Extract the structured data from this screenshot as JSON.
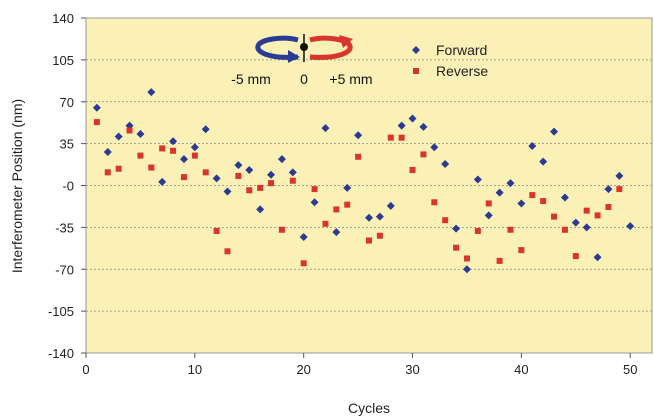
{
  "chart_data": {
    "type": "scatter",
    "xlabel": "Cycles",
    "ylabel": "Interferometer Position (nm)",
    "xlim": [
      0,
      52
    ],
    "ylim": [
      -140,
      140
    ],
    "x_ticks": [
      0,
      10,
      20,
      30,
      40,
      50
    ],
    "y_ticks": [
      140,
      105,
      70,
      35,
      0,
      -35,
      -70,
      -105,
      -140
    ],
    "y_tick_labels": [
      "140",
      "105",
      "70",
      "35",
      "-0",
      "-35",
      "-70",
      "-105",
      "-140"
    ],
    "grid": "horizontal dashed",
    "plot_background": "#fbf1b6",
    "legend_position": "top-right",
    "inset_labels": {
      "minus": "-5 mm",
      "zero": "0",
      "plus": "+5 mm"
    },
    "series": [
      {
        "name": "Forward",
        "marker": "diamond",
        "color": "#2b3a93",
        "points": [
          [
            1,
            65
          ],
          [
            2,
            28
          ],
          [
            3,
            41
          ],
          [
            4,
            50
          ],
          [
            5,
            43
          ],
          [
            6,
            78
          ],
          [
            7,
            3
          ],
          [
            8,
            37
          ],
          [
            9,
            22
          ],
          [
            10,
            32
          ],
          [
            11,
            47
          ],
          [
            12,
            6
          ],
          [
            13,
            -5
          ],
          [
            14,
            17
          ],
          [
            15,
            13
          ],
          [
            16,
            -20
          ],
          [
            17,
            9
          ],
          [
            18,
            22
          ],
          [
            19,
            11
          ],
          [
            20,
            -43
          ],
          [
            21,
            -14
          ],
          [
            22,
            48
          ],
          [
            23,
            -39
          ],
          [
            24,
            -2
          ],
          [
            25,
            42
          ],
          [
            26,
            -27
          ],
          [
            27,
            -26
          ],
          [
            28,
            -17
          ],
          [
            29,
            50
          ],
          [
            30,
            56
          ],
          [
            31,
            49
          ],
          [
            32,
            32
          ],
          [
            33,
            18
          ],
          [
            34,
            -36
          ],
          [
            35,
            -70
          ],
          [
            36,
            5
          ],
          [
            37,
            -25
          ],
          [
            38,
            -6
          ],
          [
            39,
            2
          ],
          [
            40,
            -15
          ],
          [
            41,
            33
          ],
          [
            42,
            20
          ],
          [
            43,
            45
          ],
          [
            44,
            -10
          ],
          [
            45,
            -31
          ],
          [
            46,
            -35
          ],
          [
            47,
            -60
          ],
          [
            48,
            -3
          ],
          [
            49,
            8
          ],
          [
            50,
            -34
          ]
        ]
      },
      {
        "name": "Reverse",
        "marker": "square",
        "color": "#d9352a",
        "points": [
          [
            1,
            53
          ],
          [
            2,
            11
          ],
          [
            3,
            14
          ],
          [
            4,
            46
          ],
          [
            5,
            25
          ],
          [
            6,
            15
          ],
          [
            7,
            31
          ],
          [
            8,
            29
          ],
          [
            9,
            7
          ],
          [
            10,
            25
          ],
          [
            11,
            11
          ],
          [
            12,
            -38
          ],
          [
            13,
            -55
          ],
          [
            14,
            8
          ],
          [
            15,
            -4
          ],
          [
            16,
            -2
          ],
          [
            17,
            2
          ],
          [
            18,
            -37
          ],
          [
            19,
            4
          ],
          [
            20,
            -65
          ],
          [
            21,
            -3
          ],
          [
            22,
            -32
          ],
          [
            23,
            -20
          ],
          [
            24,
            -16
          ],
          [
            25,
            24
          ],
          [
            26,
            -46
          ],
          [
            27,
            -42
          ],
          [
            28,
            40
          ],
          [
            29,
            40
          ],
          [
            30,
            13
          ],
          [
            31,
            26
          ],
          [
            32,
            -14
          ],
          [
            33,
            -29
          ],
          [
            34,
            -52
          ],
          [
            35,
            -61
          ],
          [
            36,
            -38
          ],
          [
            37,
            -15
          ],
          [
            38,
            -63
          ],
          [
            39,
            -37
          ],
          [
            40,
            -54
          ],
          [
            41,
            -8
          ],
          [
            42,
            -13
          ],
          [
            43,
            -26
          ],
          [
            44,
            -37
          ],
          [
            45,
            -59
          ],
          [
            46,
            -21
          ],
          [
            47,
            -25
          ],
          [
            48,
            -18
          ],
          [
            49,
            -3
          ]
        ]
      }
    ]
  }
}
